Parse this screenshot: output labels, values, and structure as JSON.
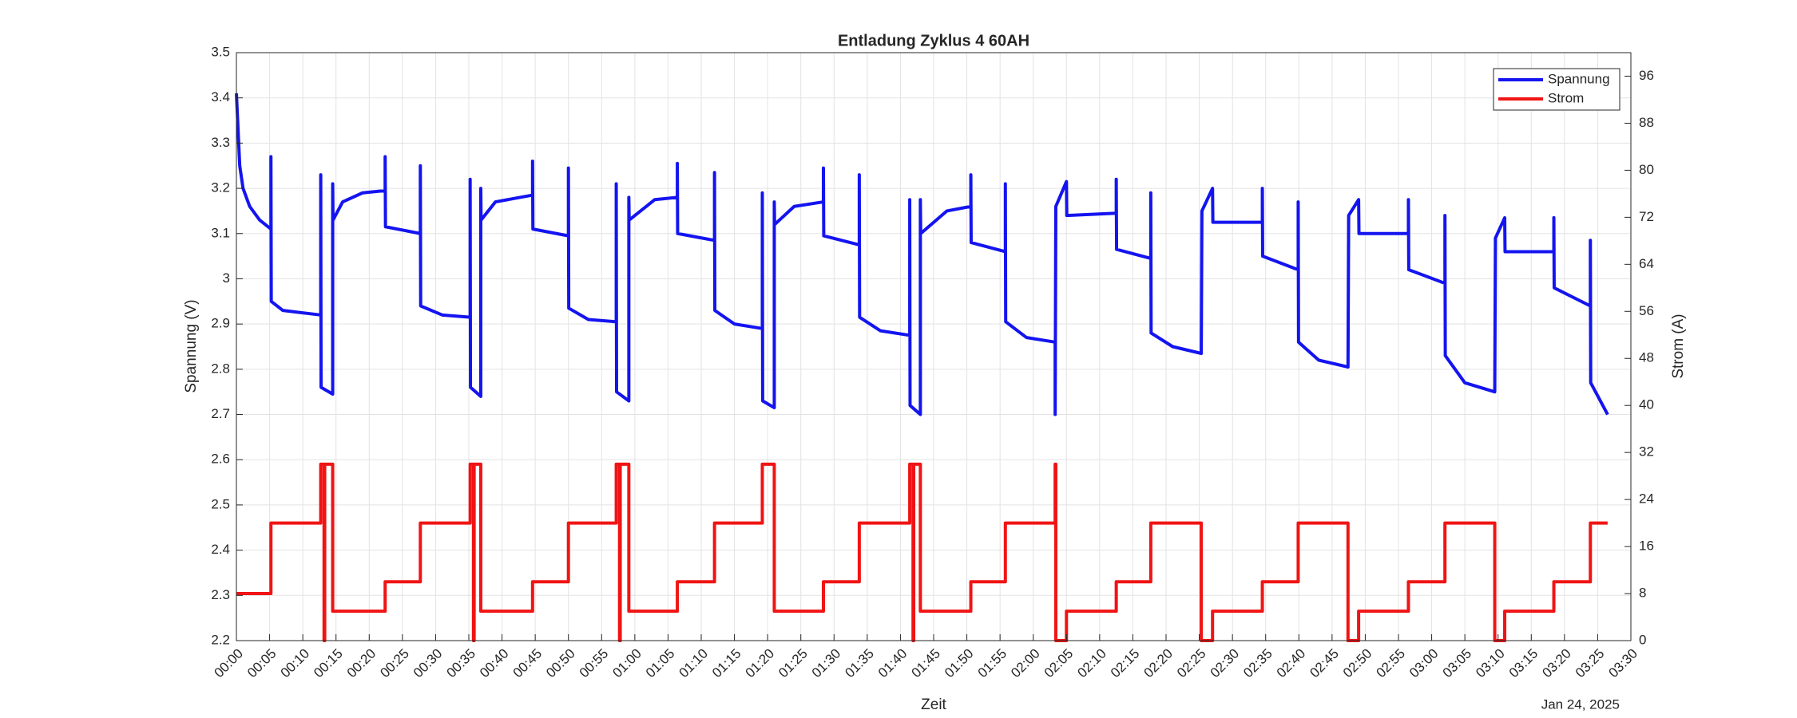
{
  "chart_data": {
    "type": "line",
    "title": "Entladung Zyklus 4 60AH",
    "xlabel": "Zeit",
    "date_label": "Jan 24, 2025",
    "ylabel": "Spannung (V)",
    "y2label": "Strom (A)",
    "grid": true,
    "legend": "northeast",
    "xlim": [
      0,
      210
    ],
    "ylim": [
      2.2,
      3.5
    ],
    "y2lim": [
      0,
      100
    ],
    "yticks": [
      2.2,
      2.3,
      2.4,
      2.5,
      2.6,
      2.7,
      2.8,
      2.9,
      3,
      3.1,
      3.2,
      3.3,
      3.4,
      3.5
    ],
    "y2ticks": [
      0,
      8,
      16,
      24,
      32,
      40,
      48,
      56,
      64,
      72,
      80,
      88,
      96
    ],
    "xticks": [
      {
        "value": 0,
        "label": "00:00"
      },
      {
        "value": 5,
        "label": "00:05"
      },
      {
        "value": 10,
        "label": "00:10"
      },
      {
        "value": 15,
        "label": "00:15"
      },
      {
        "value": 20,
        "label": "00:20"
      },
      {
        "value": 25,
        "label": "00:25"
      },
      {
        "value": 30,
        "label": "00:30"
      },
      {
        "value": 35,
        "label": "00:35"
      },
      {
        "value": 40,
        "label": "00:40"
      },
      {
        "value": 45,
        "label": "00:45"
      },
      {
        "value": 50,
        "label": "00:50"
      },
      {
        "value": 55,
        "label": "00:55"
      },
      {
        "value": 60,
        "label": "01:00"
      },
      {
        "value": 65,
        "label": "01:05"
      },
      {
        "value": 70,
        "label": "01:10"
      },
      {
        "value": 75,
        "label": "01:15"
      },
      {
        "value": 80,
        "label": "01:20"
      },
      {
        "value": 85,
        "label": "01:25"
      },
      {
        "value": 90,
        "label": "01:30"
      },
      {
        "value": 95,
        "label": "01:35"
      },
      {
        "value": 100,
        "label": "01:40"
      },
      {
        "value": 105,
        "label": "01:45"
      },
      {
        "value": 110,
        "label": "01:50"
      },
      {
        "value": 115,
        "label": "01:55"
      },
      {
        "value": 120,
        "label": "02:00"
      },
      {
        "value": 125,
        "label": "02:05"
      },
      {
        "value": 130,
        "label": "02:10"
      },
      {
        "value": 135,
        "label": "02:15"
      },
      {
        "value": 140,
        "label": "02:20"
      },
      {
        "value": 145,
        "label": "02:25"
      },
      {
        "value": 150,
        "label": "02:30"
      },
      {
        "value": 155,
        "label": "02:35"
      },
      {
        "value": 160,
        "label": "02:40"
      },
      {
        "value": 165,
        "label": "02:45"
      },
      {
        "value": 170,
        "label": "02:50"
      },
      {
        "value": 175,
        "label": "02:55"
      },
      {
        "value": 180,
        "label": "03:00"
      },
      {
        "value": 185,
        "label": "03:05"
      },
      {
        "value": 190,
        "label": "03:10"
      },
      {
        "value": 195,
        "label": "03:15"
      },
      {
        "value": 200,
        "label": "03:20"
      },
      {
        "value": 205,
        "label": "03:25"
      },
      {
        "value": 210,
        "label": "03:30"
      }
    ],
    "series": [
      {
        "name": "Spannung",
        "color": "#1414f0",
        "axis": "y",
        "x": [
          0,
          0.5,
          1,
          2,
          3.5,
          5.2,
          5.2,
          5.25,
          7,
          12.7,
          12.7,
          12.75,
          14.5,
          14.5,
          14.55,
          16,
          19,
          22.4,
          22.4,
          22.45,
          27.7,
          27.7,
          27.75,
          31,
          35.2,
          35.2,
          35.25,
          36.8,
          36.8,
          36.85,
          39,
          44.6,
          44.6,
          44.65,
          50,
          50,
          50.05,
          53,
          57.2,
          57.2,
          57.25,
          59.1,
          59.1,
          59.15,
          63,
          66.4,
          66.4,
          66.45,
          72,
          72,
          72.05,
          75,
          79.2,
          79.2,
          79.25,
          81,
          81,
          81.05,
          84,
          88.4,
          88.4,
          88.45,
          93.8,
          93.8,
          93.85,
          97,
          101.4,
          101.4,
          101.45,
          103,
          103,
          103.05,
          107,
          110.6,
          110.6,
          110.65,
          115.8,
          115.8,
          115.85,
          119,
          123.3,
          123.3,
          123.4,
          125,
          125.05,
          132.5,
          132.5,
          132.55,
          137.7,
          137.7,
          137.75,
          141,
          145.3,
          145.4,
          147,
          147.05,
          154.5,
          154.5,
          154.55,
          159.9,
          159.9,
          159.95,
          163,
          167.4,
          167.5,
          169,
          169.05,
          176.5,
          176.5,
          176.55,
          182,
          182,
          182.05,
          185,
          189.5,
          189.6,
          191,
          191.05,
          198.4,
          198.4,
          198.45,
          203.9,
          203.9,
          203.95,
          206.5
        ],
        "values": [
          3.41,
          3.25,
          3.2,
          3.16,
          3.13,
          3.11,
          3.27,
          2.95,
          2.93,
          2.92,
          3.23,
          2.76,
          2.745,
          3.21,
          3.13,
          3.17,
          3.19,
          3.195,
          3.27,
          3.115,
          3.1,
          3.25,
          2.94,
          2.92,
          2.915,
          3.22,
          2.76,
          2.74,
          3.2,
          3.13,
          3.17,
          3.185,
          3.26,
          3.11,
          3.095,
          3.245,
          2.935,
          2.91,
          2.905,
          3.21,
          2.75,
          2.73,
          3.18,
          3.13,
          3.175,
          3.18,
          3.255,
          3.1,
          3.085,
          3.235,
          2.93,
          2.9,
          2.89,
          3.19,
          2.73,
          2.715,
          3.17,
          3.12,
          3.16,
          3.17,
          3.245,
          3.095,
          3.075,
          3.23,
          2.915,
          2.885,
          2.875,
          3.175,
          2.72,
          2.7,
          3.175,
          3.1,
          3.15,
          3.16,
          3.23,
          3.08,
          3.06,
          3.21,
          2.905,
          2.87,
          2.86,
          2.7,
          3.16,
          3.215,
          3.14,
          3.145,
          3.22,
          3.065,
          3.045,
          3.19,
          2.88,
          2.85,
          2.835,
          3.15,
          3.2,
          3.125,
          3.125,
          3.2,
          3.05,
          3.02,
          3.17,
          2.86,
          2.82,
          2.805,
          3.14,
          3.175,
          3.1,
          3.1,
          3.175,
          3.02,
          2.99,
          3.14,
          2.83,
          2.77,
          2.75,
          3.09,
          3.135,
          3.06,
          3.06,
          3.135,
          2.98,
          2.94,
          3.085,
          2.77,
          2.7
        ]
      },
      {
        "name": "Strom",
        "color": "#f01414",
        "axis": "y2",
        "x": [
          0,
          5.2,
          5.2,
          12.7,
          12.7,
          13.2,
          13.2,
          13.3,
          13.3,
          14.5,
          14.5,
          22.4,
          22.4,
          27.7,
          27.7,
          35.2,
          35.2,
          35.7,
          35.7,
          35.8,
          35.8,
          36.8,
          36.8,
          44.6,
          44.6,
          50,
          50,
          57.2,
          57.2,
          57.7,
          57.7,
          57.8,
          57.8,
          59.1,
          59.1,
          66.4,
          66.4,
          72,
          72,
          79.2,
          79.2,
          81,
          81,
          88.4,
          88.4,
          93.8,
          93.8,
          101.4,
          101.4,
          101.9,
          101.9,
          102,
          102,
          103,
          103,
          110.6,
          110.6,
          115.8,
          115.8,
          123.3,
          123.3,
          123.4,
          123.4,
          125,
          125,
          132.5,
          132.5,
          137.7,
          137.7,
          145.3,
          145.3,
          147,
          147,
          154.5,
          154.5,
          159.9,
          159.9,
          167.4,
          167.4,
          169,
          169,
          176.5,
          176.5,
          182,
          182,
          189.5,
          189.5,
          191,
          191,
          198.4,
          198.4,
          203.9,
          203.9,
          206.5
        ],
        "values": [
          8,
          8,
          20,
          20,
          30,
          30,
          0,
          0,
          30,
          30,
          5,
          5,
          10,
          10,
          20,
          20,
          30,
          30,
          0,
          0,
          30,
          30,
          5,
          5,
          10,
          10,
          20,
          20,
          30,
          30,
          0,
          0,
          30,
          30,
          5,
          5,
          10,
          10,
          20,
          20,
          30,
          30,
          5,
          5,
          10,
          10,
          20,
          20,
          30,
          30,
          0,
          0,
          30,
          30,
          5,
          5,
          10,
          10,
          20,
          20,
          30,
          30,
          0,
          0,
          5,
          5,
          10,
          10,
          20,
          20,
          0,
          0,
          5,
          5,
          10,
          10,
          20,
          20,
          0,
          0,
          5,
          5,
          10,
          10,
          20,
          20,
          0,
          0,
          5,
          5,
          10,
          10,
          20,
          20
        ]
      }
    ]
  }
}
